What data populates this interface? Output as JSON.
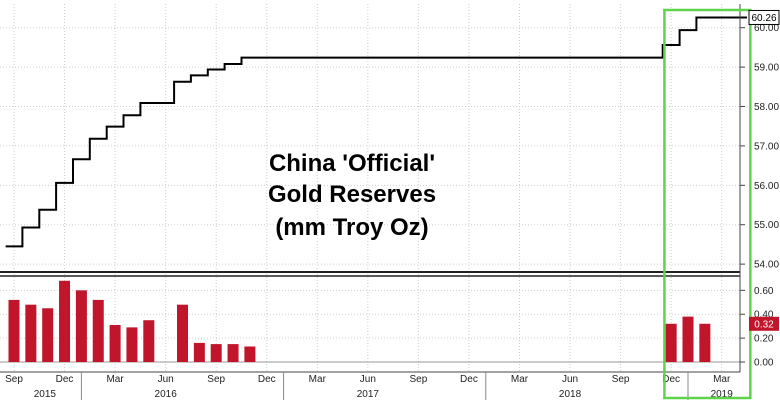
{
  "chart_data": [
    {
      "type": "line",
      "title_lines": [
        "China 'Official'",
        "Gold Reserves",
        "(mm Troy Oz)"
      ],
      "ylim": [
        53.8,
        60.5
      ],
      "yticks": [
        "54.00",
        "55.00",
        "56.00",
        "57.00",
        "58.00",
        "59.00",
        "60.00"
      ],
      "ytick_values": [
        54,
        55,
        56,
        57,
        58,
        59,
        60
      ],
      "last_value_label": "60.26",
      "last_value": 60.26,
      "line_color": "#000000",
      "step": true,
      "x_month_index": [
        0,
        1,
        2,
        3,
        4,
        5,
        6,
        7,
        8,
        9,
        10,
        11,
        12,
        13,
        14,
        15,
        16,
        17,
        18,
        19,
        20,
        21,
        22,
        23,
        24,
        25,
        26,
        27,
        28,
        29,
        30,
        31,
        32,
        33,
        34,
        35,
        36,
        37,
        38,
        39,
        40,
        41,
        42,
        43
      ],
      "values": [
        54.45,
        54.93,
        55.38,
        56.06,
        56.66,
        57.18,
        57.49,
        57.78,
        58.09,
        58.09,
        58.63,
        58.79,
        58.94,
        59.08,
        59.24,
        59.24,
        59.24,
        59.24,
        59.24,
        59.24,
        59.24,
        59.24,
        59.24,
        59.24,
        59.24,
        59.24,
        59.24,
        59.24,
        59.24,
        59.24,
        59.24,
        59.24,
        59.24,
        59.24,
        59.24,
        59.24,
        59.24,
        59.24,
        59.24,
        59.56,
        59.94,
        60.26,
        60.26,
        60.26
      ]
    },
    {
      "type": "bar",
      "ylim": [
        -0.05,
        0.72
      ],
      "yticks": [
        "0.00",
        "0.20",
        "0.40",
        "0.60"
      ],
      "ytick_values": [
        0,
        0.2,
        0.4,
        0.6
      ],
      "last_value_label": "0.32",
      "last_value": 0.32,
      "bar_color": "#c0152a",
      "x_month_index": [
        0,
        1,
        2,
        3,
        4,
        5,
        6,
        7,
        8,
        9,
        10,
        11,
        12,
        13,
        14,
        15,
        16,
        17,
        18,
        19,
        20,
        21,
        22,
        23,
        24,
        25,
        26,
        27,
        28,
        29,
        30,
        31,
        32,
        33,
        34,
        35,
        36,
        37,
        38,
        39,
        40,
        41
      ],
      "values": [
        0.52,
        0.48,
        0.45,
        0.68,
        0.6,
        0.52,
        0.31,
        0.29,
        0.35,
        0,
        0.48,
        0.16,
        0.15,
        0.15,
        0.13,
        0,
        0,
        0,
        0,
        0,
        0,
        0,
        0,
        0,
        0,
        0,
        0,
        0,
        0,
        0,
        0,
        0,
        0,
        0,
        0,
        0,
        0,
        0,
        0,
        0.32,
        0.38,
        0.32
      ]
    }
  ],
  "x_axis": {
    "month_labels": [
      "Sep",
      "Dec",
      "Mar",
      "Jun",
      "Sep",
      "Dec",
      "Mar",
      "Jun",
      "Sep",
      "Dec",
      "Mar",
      "Jun",
      "Sep",
      "Dec",
      "Mar"
    ],
    "month_label_index": [
      0,
      3,
      6,
      9,
      12,
      15,
      18,
      21,
      24,
      27,
      30,
      33,
      36,
      39,
      42
    ],
    "year_labels": [
      "2015",
      "2016",
      "2017",
      "2018",
      "2019"
    ],
    "year_label_index": [
      1,
      9,
      21,
      33,
      42
    ]
  },
  "highlight": {
    "color": "#5fd44a",
    "from_month_index": 38.6,
    "to_month_index": 43.7
  }
}
